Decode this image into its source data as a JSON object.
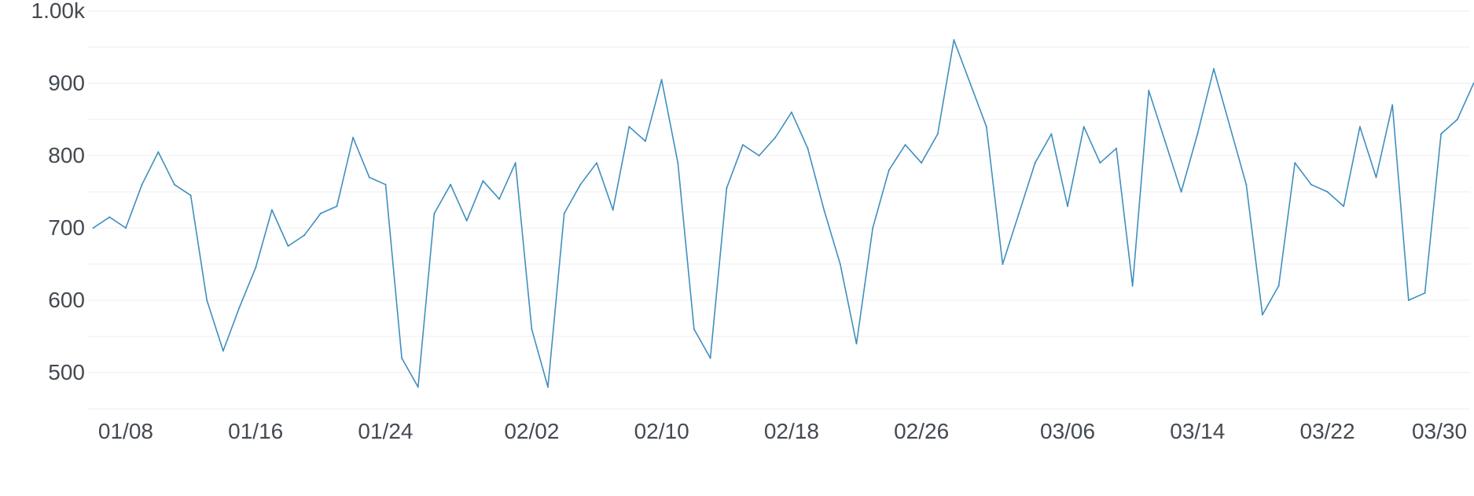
{
  "chart_data": {
    "type": "line",
    "title": "",
    "xlabel": "",
    "ylabel": "",
    "ylim": [
      450,
      1000
    ],
    "y_ticks": [
      {
        "value": 500,
        "label": "500"
      },
      {
        "value": 600,
        "label": "600"
      },
      {
        "value": 700,
        "label": "700"
      },
      {
        "value": 800,
        "label": "800"
      },
      {
        "value": 900,
        "label": "900"
      },
      {
        "value": 1000,
        "label": "1.00k"
      }
    ],
    "x_ticks": [
      {
        "value": "01/08",
        "label": "01/08"
      },
      {
        "value": "01/16",
        "label": "01/16"
      },
      {
        "value": "01/24",
        "label": "01/24"
      },
      {
        "value": "02/02",
        "label": "02/02"
      },
      {
        "value": "02/10",
        "label": "02/10"
      },
      {
        "value": "02/18",
        "label": "02/18"
      },
      {
        "value": "02/26",
        "label": "02/26"
      },
      {
        "value": "03/06",
        "label": "03/06"
      },
      {
        "value": "03/14",
        "label": "03/14"
      },
      {
        "value": "03/22",
        "label": "03/22"
      },
      {
        "value": "03/30",
        "label": "03/30"
      }
    ],
    "grid": true,
    "legend": "none",
    "colors": {
      "line": "#3f8fbf",
      "grid": "#eeeeee",
      "text": "#444a52"
    },
    "series": [
      {
        "x": [
          "01/06",
          "01/07",
          "01/08",
          "01/09",
          "01/10",
          "01/11",
          "01/12",
          "01/13",
          "01/14",
          "01/15",
          "01/16",
          "01/17",
          "01/18",
          "01/19",
          "01/20",
          "01/21",
          "01/22",
          "01/23",
          "01/24",
          "01/25",
          "01/26",
          "01/27",
          "01/28",
          "01/29",
          "01/30",
          "01/31",
          "02/01",
          "02/02",
          "02/03",
          "02/04",
          "02/05",
          "02/06",
          "02/07",
          "02/08",
          "02/09",
          "02/10",
          "02/11",
          "02/12",
          "02/13",
          "02/14",
          "02/15",
          "02/16",
          "02/17",
          "02/18",
          "02/19",
          "02/20",
          "02/21",
          "02/22",
          "02/23",
          "02/24",
          "02/25",
          "02/26",
          "02/27",
          "02/28",
          "03/01",
          "03/02",
          "03/03",
          "03/04",
          "03/05",
          "03/06",
          "03/07",
          "03/08",
          "03/09",
          "03/10",
          "03/11",
          "03/12",
          "03/13",
          "03/14",
          "03/15",
          "03/16",
          "03/17",
          "03/18",
          "03/19",
          "03/20",
          "03/21",
          "03/22",
          "03/23",
          "03/24",
          "03/25",
          "03/26",
          "03/27",
          "03/28",
          "03/29",
          "03/30",
          "03/31"
        ],
        "values": [
          700,
          715,
          700,
          760,
          805,
          760,
          745,
          600,
          530,
          590,
          645,
          725,
          675,
          690,
          720,
          730,
          825,
          770,
          760,
          520,
          480,
          720,
          760,
          710,
          765,
          740,
          790,
          560,
          480,
          720,
          760,
          790,
          725,
          840,
          820,
          905,
          790,
          560,
          520,
          755,
          815,
          800,
          825,
          860,
          810,
          725,
          650,
          540,
          700,
          780,
          815,
          790,
          830,
          960,
          840,
          650,
          720,
          790,
          830,
          730,
          840,
          790,
          810,
          620,
          890,
          820,
          750,
          830,
          920,
          840,
          760,
          580,
          620,
          790,
          760,
          750,
          730,
          840,
          770,
          870,
          600,
          610,
          830,
          850,
          900
        ]
      }
    ]
  }
}
